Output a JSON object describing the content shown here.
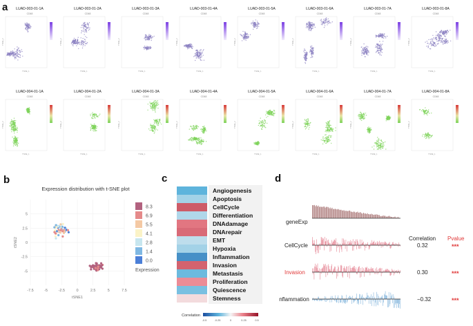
{
  "panels": {
    "a": "a",
    "b": "b",
    "c": "c",
    "d": "d"
  },
  "panel_a": {
    "row1": [
      {
        "title": "LUAD-003-01-1A",
        "subtitle": "CD68"
      },
      {
        "title": "LUAD-003-01-2A",
        "subtitle": "CD68"
      },
      {
        "title": "LUAD-003-01-3A",
        "subtitle": "CD68"
      },
      {
        "title": "LUAD-003-01-4A",
        "subtitle": "CD68"
      },
      {
        "title": "LUAD-003-01-5A",
        "subtitle": "CD68"
      },
      {
        "title": "LUAD-003-01-6A",
        "subtitle": "CD68"
      },
      {
        "title": "LUAD-003-01-7A",
        "subtitle": "CD68"
      },
      {
        "title": "LUAD-003-01-8A",
        "subtitle": "CD68"
      }
    ],
    "row2": [
      {
        "title": "LUAD-004-01-1A",
        "subtitle": "CD68"
      },
      {
        "title": "LUAD-004-01-2A",
        "subtitle": "CD68"
      },
      {
        "title": "LUAD-004-01-3A",
        "subtitle": "CD68"
      },
      {
        "title": "LUAD-004-01-4A",
        "subtitle": "CD68"
      },
      {
        "title": "LUAD-004-01-5A",
        "subtitle": "CD68"
      },
      {
        "title": "LUAD-004-01-6A",
        "subtitle": "CD68"
      },
      {
        "title": "LUAD-004-01-7A",
        "subtitle": "CD68"
      },
      {
        "title": "LUAD-004-01-8A",
        "subtitle": "CD68"
      }
    ],
    "axis_x": "TSNE_1",
    "axis_y": "TSNE_2",
    "colors": {
      "row1_point": "#8a7fc0",
      "row1_bar_top": "#7b3fe4",
      "row2_point": "#7dd35a",
      "row2_bar_top": "#d93b3b"
    }
  },
  "chart_data": [
    {
      "type": "scatter",
      "title": "Expression distribution with t-SNE plot",
      "xlabel": "tSNE1",
      "ylabel": "tSNE2",
      "xlim": [
        -7.5,
        7.5
      ],
      "ylim": [
        -7.5,
        7.5
      ],
      "xticks": [
        "-7.5",
        "-5",
        "-2.5",
        "0",
        "2.5",
        "5",
        "7.5"
      ],
      "yticks": [
        "5",
        "2.5",
        "0",
        "-2.5",
        "-5"
      ],
      "legend_title": "Expression",
      "legend_levels": [
        "8.3",
        "6.9",
        "5.5",
        "4.1",
        "2.8",
        "1.4",
        "0.0"
      ],
      "legend_colors": [
        "#b2627f",
        "#e58a8a",
        "#f4c9a4",
        "#fbf3c7",
        "#c7e6ef",
        "#7fb8e3",
        "#4b7fd8"
      ],
      "clusters": [
        {
          "name": "upper-left",
          "center": [
            -2.8,
            2.2
          ],
          "spread": [
            2.2,
            2.0
          ],
          "count": 60
        },
        {
          "name": "lower-right",
          "center": [
            3.0,
            -4.2
          ],
          "spread": [
            1.5,
            1.1
          ],
          "count": 65
        }
      ]
    },
    {
      "type": "heatmap",
      "rows": [
        "Angiogenesis",
        "Apoptosis",
        "CellCycle",
        "Differentiation",
        "DNAdamage",
        "DNArepair",
        "EMT",
        "Hypoxia",
        "Inflammation",
        "Invasion",
        "Metastasis",
        "Proliferation",
        "Quiescence",
        "Stemness"
      ],
      "values": [
        -0.22,
        -0.12,
        0.32,
        -0.1,
        0.25,
        0.28,
        -0.08,
        -0.12,
        -0.32,
        0.3,
        -0.2,
        0.2,
        -0.18,
        0.05
      ],
      "colorbar_label": "Correlation",
      "colorbar_ticks": [
        "-0.5",
        "-0.25",
        "0",
        "0.25",
        "0.5"
      ],
      "vlim": [
        -0.5,
        0.5
      ]
    },
    {
      "type": "bar",
      "title": "",
      "tracks": [
        {
          "name": "geneExp",
          "kind": "decreasing"
        },
        {
          "name": "CellCycle",
          "correlation": "0.32",
          "pvalue": "***",
          "color": "#e06c7e"
        },
        {
          "name": "Invasion",
          "correlation": "0.30",
          "pvalue": "***",
          "color": "#e06c7e"
        },
        {
          "name": "Inflammation",
          "correlation": "−0.32",
          "pvalue": "***",
          "color": "#6fa8d6"
        }
      ],
      "header_correlation": "Correlation",
      "header_pvalue": "Pvalue"
    }
  ]
}
